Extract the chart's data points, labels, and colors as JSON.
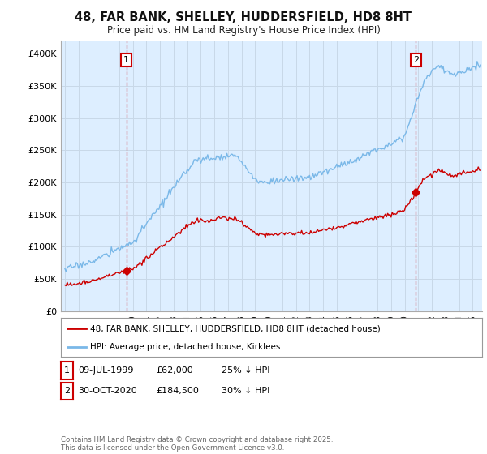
{
  "title": "48, FAR BANK, SHELLEY, HUDDERSFIELD, HD8 8HT",
  "subtitle": "Price paid vs. HM Land Registry's House Price Index (HPI)",
  "ylim": [
    0,
    420000
  ],
  "yticks": [
    0,
    50000,
    100000,
    150000,
    200000,
    250000,
    300000,
    350000,
    400000
  ],
  "ytick_labels": [
    "£0",
    "£50K",
    "£100K",
    "£150K",
    "£200K",
    "£250K",
    "£300K",
    "£350K",
    "£400K"
  ],
  "sale1_date": 1999.52,
  "sale1_price": 62000,
  "sale1_label": "1",
  "sale2_date": 2020.83,
  "sale2_price": 184500,
  "sale2_label": "2",
  "hpi_color": "#7ab8e8",
  "price_color": "#cc0000",
  "plot_bg_color": "#ddeeff",
  "legend_price_label": "48, FAR BANK, SHELLEY, HUDDERSFIELD, HD8 8HT (detached house)",
  "legend_hpi_label": "HPI: Average price, detached house, Kirklees",
  "ann1_date": "09-JUL-1999",
  "ann1_price": "£62,000",
  "ann1_hpi": "25% ↓ HPI",
  "ann2_date": "30-OCT-2020",
  "ann2_price": "£184,500",
  "ann2_hpi": "30% ↓ HPI",
  "footer": "Contains HM Land Registry data © Crown copyright and database right 2025.\nThis data is licensed under the Open Government Licence v3.0.",
  "background_color": "#ffffff",
  "grid_color": "#c8d8e8"
}
